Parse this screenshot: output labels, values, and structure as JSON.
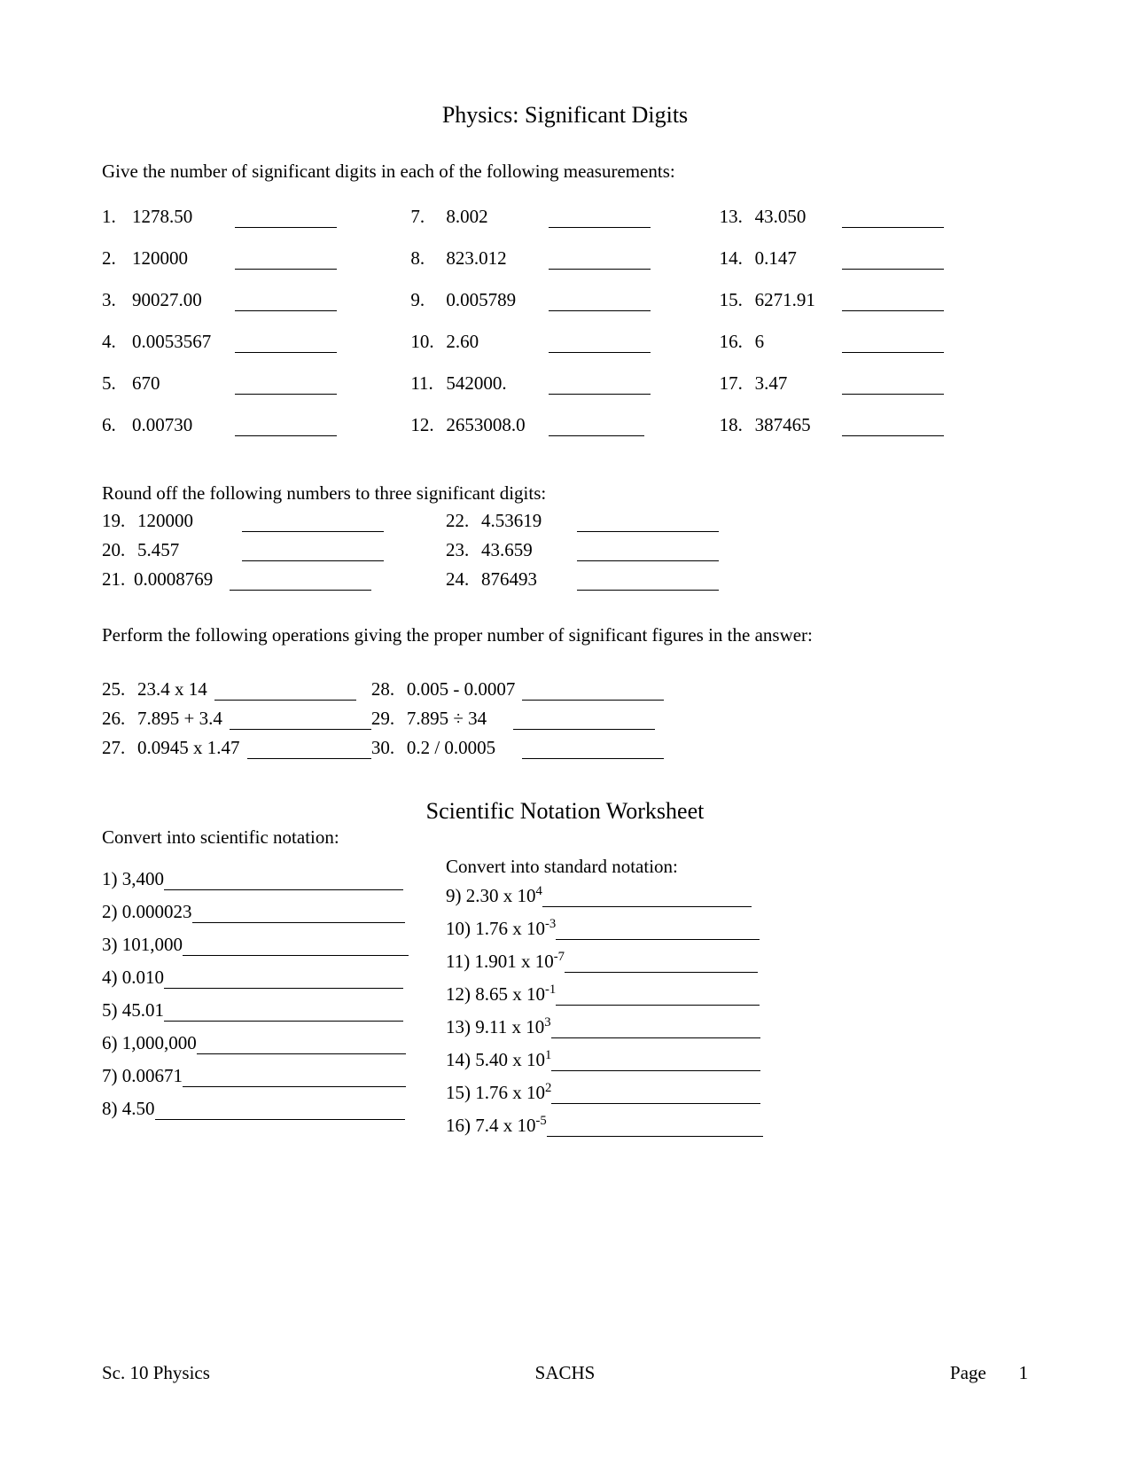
{
  "title1": "Physics:  Significant Digits",
  "instr1": "Give the number of significant digits in each of the following measurements:",
  "sectionA": {
    "col1": [
      {
        "n": "1.",
        "v": "1278.50",
        "bw": 115,
        "vw": 108
      },
      {
        "n": "2.",
        "v": "120000",
        "bw": 115,
        "vw": 108
      },
      {
        "n": "3.",
        "v": "90027.00",
        "bw": 115,
        "vw": 108
      },
      {
        "n": "4.",
        "v": "0.0053567",
        "bw": 115,
        "vw": 108
      },
      {
        "n": "5.",
        "v": "670",
        "bw": 115,
        "vw": 108
      },
      {
        "n": "6.",
        "v": "0.00730",
        "bw": 115,
        "vw": 108
      }
    ],
    "col2": [
      {
        "n": "7.",
        "v": "8.002",
        "bw": 115,
        "vw": 108
      },
      {
        "n": "8.",
        "v": "823.012",
        "bw": 115,
        "vw": 108
      },
      {
        "n": "9.",
        "v": "0.005789",
        "bw": 115,
        "vw": 108
      },
      {
        "n": "10.",
        "v": "2.60",
        "bw": 115,
        "vw": 108
      },
      {
        "n": "11.",
        "v": "542000.",
        "bw": 115,
        "vw": 108
      },
      {
        "n": "12.",
        "v": "2653008.0",
        "bw": 108,
        "vw": 108
      }
    ],
    "col3": [
      {
        "n": "13.",
        "v": "43.050",
        "bw": 115,
        "vw": 90
      },
      {
        "n": "14.",
        "v": "0.147",
        "bw": 115,
        "vw": 90
      },
      {
        "n": "15.",
        "v": "6271.91",
        "bw": 115,
        "vw": 90
      },
      {
        "n": "16.",
        "v": "6",
        "bw": 115,
        "vw": 90
      },
      {
        "n": "17.",
        "v": "3.47",
        "bw": 115,
        "vw": 90
      },
      {
        "n": "18.",
        "v": "387465",
        "bw": 115,
        "vw": 90
      }
    ]
  },
  "instr2": "Round off the following numbers to three significant digits:",
  "sectionB": {
    "col1": [
      {
        "n": "19.",
        "v": "120000",
        "bw": 160,
        "vw": 110
      },
      {
        "n": "20.",
        "v": "5.457",
        "bw": 160,
        "vw": 110
      },
      {
        "n": "21.",
        "v": "0.0008769",
        "bw": 160,
        "vw": 100,
        "nopad": true
      }
    ],
    "col2": [
      {
        "n": "22.",
        "v": "4.53619",
        "bw": 160,
        "vw": 100
      },
      {
        "n": "23.",
        "v": "43.659",
        "bw": 160,
        "vw": 100
      },
      {
        "n": "24.",
        "v": "876493",
        "bw": 160,
        "vw": 100
      }
    ]
  },
  "instr3": "Perform the following operations giving the proper number of significant figures in the answer:",
  "sectionC": {
    "col1": [
      {
        "n": "25.",
        "v": "23.4  x  14",
        "bw": 160
      },
      {
        "n": "26.",
        "v": "7.895  +  3.4",
        "bw": 160
      },
      {
        "n": "27.",
        "v": "0.0945  x  1.47",
        "bw": 140
      }
    ],
    "col2": [
      {
        "n": "28.",
        "v": "0.005  -  0.0007",
        "bw": 160
      },
      {
        "n": "29.",
        "v": "7.895  ÷  34",
        "bw": 160,
        "gap": true
      },
      {
        "n": "30.",
        "v": "0.2  /  0.0005",
        "bw": 160,
        "gap": true
      }
    ]
  },
  "title2": "Scientific Notation Worksheet",
  "instr4a": "Convert into scientific notation:",
  "instr4b": "Convert into standard notation:",
  "sectionD": {
    "col1": [
      {
        "n": "1)",
        "v": "3,400",
        "bw": 270
      },
      {
        "n": "2)",
        "v": "0.000023",
        "bw": 240
      },
      {
        "n": "3)",
        "v": "101,000",
        "bw": 255
      },
      {
        "n": "4)",
        "v": "0.010",
        "bw": 270
      },
      {
        "n": "5)",
        "v": "45.01",
        "bw": 270
      },
      {
        "n": "6)",
        "v": "1,000,000",
        "bw": 236
      },
      {
        "n": "7)",
        "v": "0.00671",
        "bw": 252
      },
      {
        "n": "8)",
        "v": "4.50",
        "bw": 282
      }
    ],
    "col2": [
      {
        "n": "9)",
        "base": "2.30 x 10",
        "exp": "4",
        "bw": 236
      },
      {
        "n": "10)",
        "base": "1.76 x 10",
        "exp": "-3",
        "bw": 230
      },
      {
        "n": "11)",
        "base": "1.901 x 10",
        "exp": "-7",
        "bw": 218
      },
      {
        "n": "12)",
        "base": "8.65 x 10",
        "exp": "-1",
        "bw": 230
      },
      {
        "n": "13)",
        "base": "9.11 x 10",
        "exp": "3",
        "bw": 236
      },
      {
        "n": "14)",
        "base": "5.40 x 10",
        "exp": "1",
        "bw": 236
      },
      {
        "n": "15)",
        "base": "1.76 x 10",
        "exp": "2",
        "bw": 236
      },
      {
        "n": "16)",
        "base": "7.4 x 10",
        "exp": "-5",
        "bw": 244
      }
    ]
  },
  "footer": {
    "left": "Sc. 10 Physics",
    "center": "SACHS",
    "right_label": "Page",
    "right_num": "1"
  }
}
